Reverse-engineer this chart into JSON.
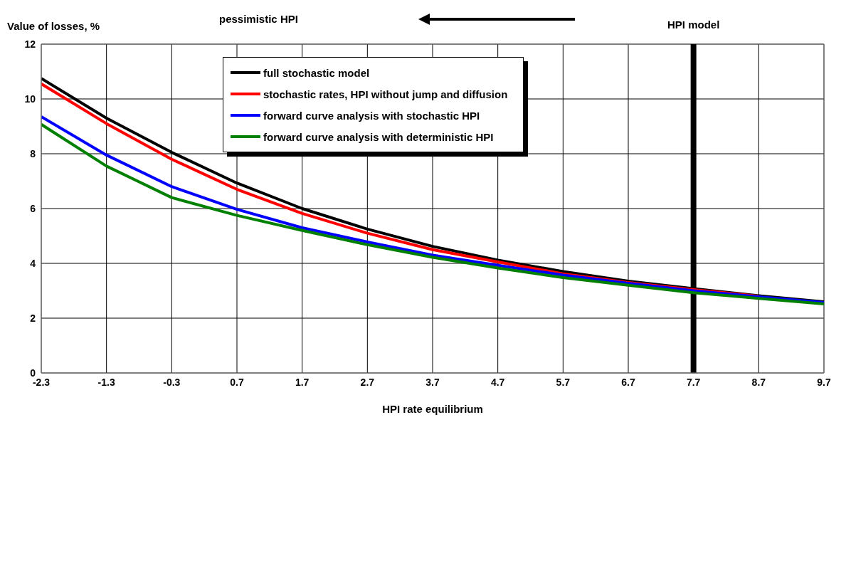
{
  "chart_data": {
    "type": "line",
    "ylabel": "Value of losses, %",
    "xlabel": "HPI rate equilibrium",
    "annotations": [
      "pessimistic HPI"
    ],
    "x": [
      -2.3,
      -1.3,
      -0.3,
      0.7,
      1.7,
      2.7,
      3.7,
      4.7,
      5.7,
      6.7,
      7.7,
      8.7,
      9.7
    ],
    "series": [
      {
        "name": "full stochastic model",
        "color": "#000000",
        "values": [
          10.75,
          9.3,
          8.05,
          6.93,
          6.0,
          5.25,
          4.62,
          4.12,
          3.7,
          3.35,
          3.08,
          2.82,
          2.6
        ]
      },
      {
        "name": "stochastic rates, HPI without jump and diffusion",
        "color": "#ff0000",
        "values": [
          10.55,
          9.1,
          7.8,
          6.7,
          5.82,
          5.1,
          4.5,
          4.05,
          3.62,
          3.3,
          3.04,
          2.8,
          null
        ]
      },
      {
        "name": "forward curve analysis with stochastic HPI",
        "color": "#0000ff",
        "values": [
          9.35,
          7.95,
          6.8,
          5.97,
          5.3,
          4.78,
          4.3,
          3.93,
          3.57,
          3.27,
          3.0,
          2.78,
          2.57
        ]
      },
      {
        "name": "forward curve analysis with deterministic HPI",
        "color": "#008000",
        "values": [
          9.07,
          7.55,
          6.4,
          5.75,
          5.2,
          4.68,
          4.22,
          3.83,
          3.48,
          3.2,
          2.93,
          2.72,
          2.52
        ]
      }
    ],
    "xlim": [
      -2.3,
      9.7
    ],
    "xticks": [
      -2.3,
      -1.3,
      -0.3,
      0.7,
      1.7,
      2.7,
      3.7,
      4.7,
      5.7,
      6.7,
      7.7,
      8.7,
      9.7
    ],
    "ylim": [
      0,
      12
    ],
    "yticks": [
      0,
      2,
      4,
      6,
      8,
      10,
      12
    ],
    "ref_lines": [
      {
        "axis": "x",
        "value": 7.7,
        "label": "HPI model",
        "color": "#000000"
      }
    ],
    "grid": true,
    "legend": "top",
    "marker": "none",
    "line_style": "solid"
  }
}
